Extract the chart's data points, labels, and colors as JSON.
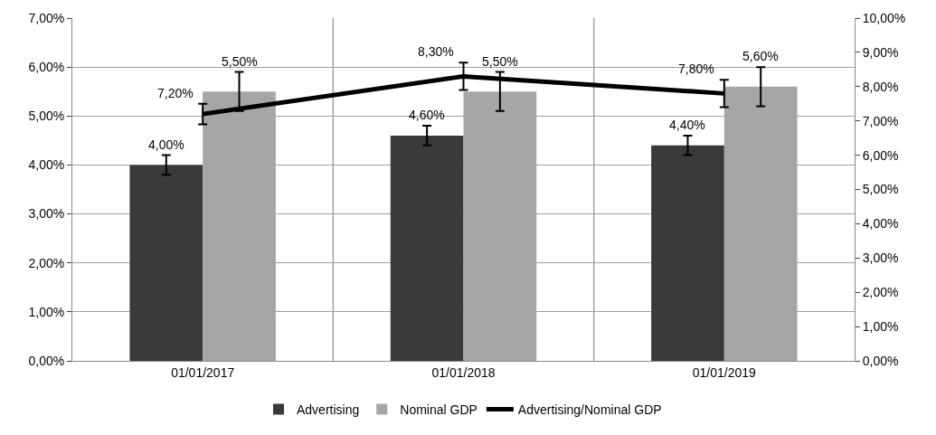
{
  "chart_data": {
    "type": "bar",
    "categories": [
      "01/01/2017",
      "01/01/2018",
      "01/01/2019"
    ],
    "series": [
      {
        "name": "Advertising",
        "color": "#3a3a3a",
        "values": [
          4.0,
          4.6,
          4.4
        ],
        "errors": [
          0.2,
          0.2,
          0.2
        ],
        "value_labels": [
          "4,00%",
          "4,60%",
          "4,40%"
        ]
      },
      {
        "name": "Nominal GDP",
        "color": "#a6a6a6",
        "values": [
          5.5,
          5.5,
          5.6
        ],
        "errors": [
          0.4,
          0.4,
          0.4
        ],
        "value_labels": [
          "5,50%",
          "5,50%",
          "5,60%"
        ]
      },
      {
        "name": "Advertising/Nominal GDP",
        "type": "line",
        "axis": "y2",
        "color": "#000000",
        "values": [
          7.2,
          8.3,
          7.8
        ],
        "errors": [
          0.3,
          0.4,
          0.4
        ],
        "value_labels": [
          "7,20%",
          "8,30%",
          "7,80%"
        ]
      }
    ],
    "ylim": [
      0,
      7
    ],
    "yticks": [
      {
        "value": 0,
        "label": "0,00%"
      },
      {
        "value": 1,
        "label": "1,00%"
      },
      {
        "value": 2,
        "label": "2,00%"
      },
      {
        "value": 3,
        "label": "3,00%"
      },
      {
        "value": 4,
        "label": "4,00%"
      },
      {
        "value": 5,
        "label": "5,00%"
      },
      {
        "value": 6,
        "label": "6,00%"
      },
      {
        "value": 7,
        "label": "7,00%"
      }
    ],
    "y2lim": [
      0,
      10
    ],
    "y2ticks": [
      {
        "value": 0,
        "label": "0,00%"
      },
      {
        "value": 1,
        "label": "1,00%"
      },
      {
        "value": 2,
        "label": "2,00%"
      },
      {
        "value": 3,
        "label": "3,00%"
      },
      {
        "value": 4,
        "label": "4,00%"
      },
      {
        "value": 5,
        "label": "5,00%"
      },
      {
        "value": 6,
        "label": "6,00%"
      },
      {
        "value": 7,
        "label": "7,00%"
      },
      {
        "value": 8,
        "label": "8,00%"
      },
      {
        "value": 9,
        "label": "9,00%"
      },
      {
        "value": 10,
        "label": "10,00%"
      }
    ],
    "grid": true,
    "legend": "bottom",
    "marker": "none",
    "line_style": "solid"
  }
}
